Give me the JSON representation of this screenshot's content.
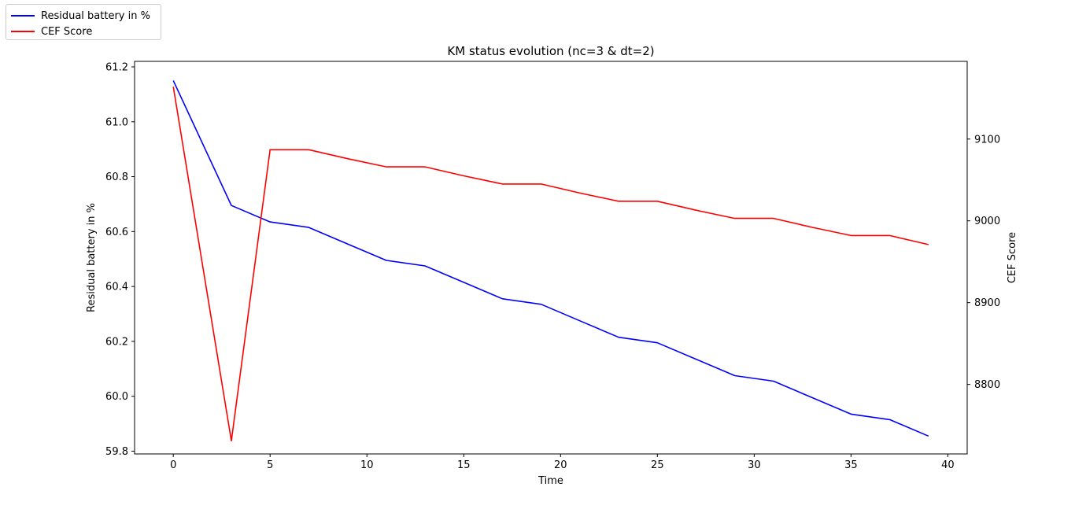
{
  "chart_data": {
    "type": "line",
    "title": "KM status evolution (nc=3 & dt=2)",
    "xlabel": "Time",
    "ylabel_left": "Residual battery in %",
    "ylabel_right": "CEF Score",
    "xlim": [
      -2,
      41
    ],
    "ylim_left": [
      59.79,
      61.22
    ],
    "ylim_right": [
      8715,
      9195
    ],
    "xticks": [
      0,
      5,
      10,
      15,
      20,
      25,
      30,
      35,
      40
    ],
    "yticks_left": [
      59.8,
      60.0,
      60.2,
      60.4,
      60.6,
      60.8,
      61.0,
      61.2
    ],
    "yticks_left_labels": [
      "59.8",
      "60.0",
      "60.2",
      "60.4",
      "60.6",
      "60.8",
      "61.0",
      "61.2"
    ],
    "yticks_right": [
      8800,
      8900,
      9000,
      9100
    ],
    "grid": false,
    "legend_position": "top-left",
    "series": [
      {
        "name": "Residual battery in %",
        "axis": "left",
        "color": "#0000ff",
        "x": [
          0,
          3,
          5,
          7,
          9,
          11,
          13,
          15,
          17,
          19,
          21,
          23,
          25,
          27,
          29,
          31,
          33,
          35,
          37,
          39
        ],
        "y": [
          61.15,
          60.695,
          60.635,
          60.615,
          60.555,
          60.495,
          60.475,
          60.415,
          60.355,
          60.335,
          60.275,
          60.215,
          60.195,
          60.135,
          60.075,
          60.055,
          59.995,
          59.935,
          59.915,
          59.855
        ]
      },
      {
        "name": "CEF Score",
        "axis": "right",
        "color": "#ff0000",
        "x": [
          0,
          3,
          5,
          7,
          9,
          11,
          13,
          15,
          17,
          19,
          21,
          23,
          25,
          27,
          29,
          31,
          33,
          35,
          37,
          39
        ],
        "y": [
          9164,
          8731,
          9087,
          9087,
          9076,
          9066,
          9066,
          9055,
          9045,
          9045,
          9034,
          9024,
          9024,
          9013,
          9003,
          9003,
          8992,
          8982,
          8982,
          8971
        ]
      }
    ]
  }
}
